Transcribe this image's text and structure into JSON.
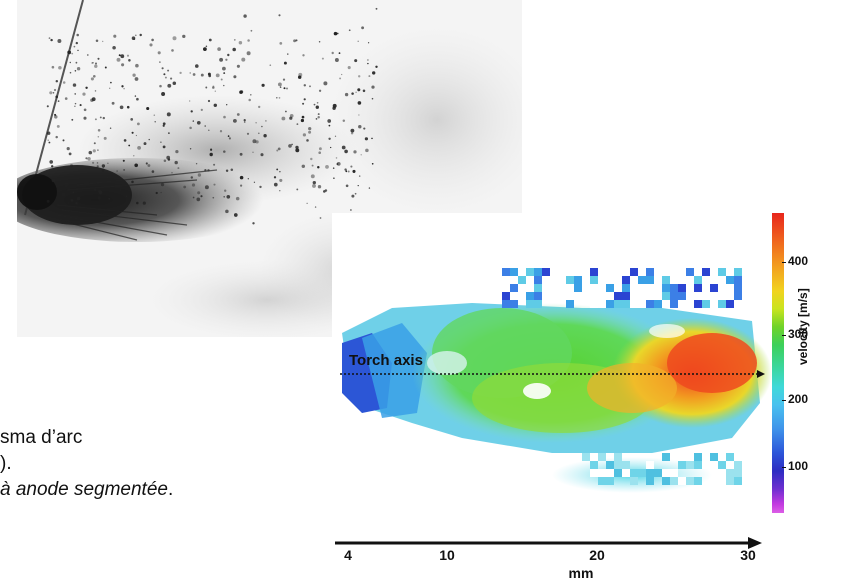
{
  "figure": {
    "torch_axis_label": "Torch axis",
    "x_axis": {
      "title": "mm",
      "ticks": [
        "4",
        "10",
        "20",
        "30"
      ]
    },
    "colorbar": {
      "title": "velocity [m/s]",
      "ticks": [
        "400",
        "300",
        "200",
        "100"
      ]
    }
  },
  "caption": {
    "line1": "sma d’arc",
    "line2": ").",
    "line3_italic": "à anode segmentée",
    "line3_end": "."
  },
  "colors": {
    "axis": "#111111",
    "photo_background": "#f3f3f3"
  }
}
